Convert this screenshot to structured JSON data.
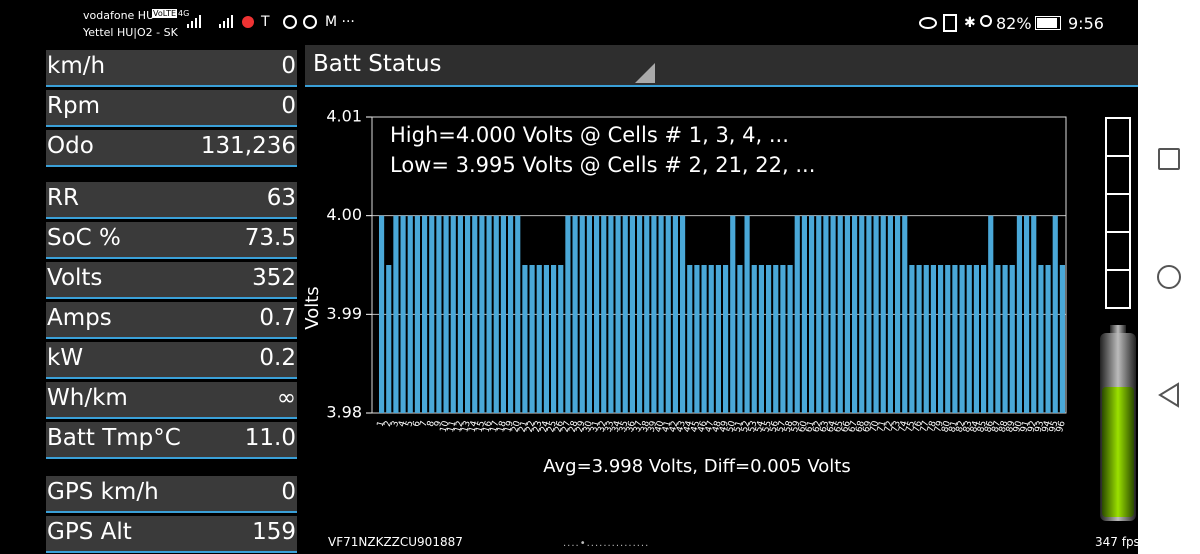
{
  "status_bar": {
    "carrier1": "vodafone HU",
    "volte": "VoLTE",
    "carrier2": "Yettel HU|O2 - SK",
    "network": "4G",
    "battery": "82%",
    "time": "9:56"
  },
  "left_panel": [
    {
      "label": "km/h",
      "value": "0"
    },
    {
      "label": "Rpm",
      "value": "0"
    },
    {
      "label": "Odo",
      "value": "131,236"
    },
    {
      "label": "RR",
      "value": "63"
    },
    {
      "label": "SoC %",
      "value": "73.5"
    },
    {
      "label": "Volts",
      "value": "352"
    },
    {
      "label": "Amps",
      "value": "0.7"
    },
    {
      "label": "kW",
      "value": "0.2"
    },
    {
      "label": "Wh/km",
      "value": "∞"
    },
    {
      "label": "Batt Tmp°C",
      "value": "11.0"
    },
    {
      "label": "GPS km/h",
      "value": "0"
    },
    {
      "label": "GPS Alt",
      "value": "159"
    }
  ],
  "header": {
    "title": "Batt Status"
  },
  "footer": {
    "vin": "VF71NZKZZCU901887",
    "fps": "347 fps"
  },
  "chart_data": {
    "type": "bar",
    "color": "#4aa8d8",
    "annotations": [
      "High=4.000 Volts @ Cells # 1, 3, 4,  ...",
      "Low= 3.995 Volts @ Cells # 2, 21, 22,  ..."
    ],
    "x_label": "Avg=3.998 Volts, Diff=0.005 Volts",
    "y_label": "Volts",
    "ylim": [
      3.98,
      4.01
    ],
    "yticks": [
      3.98,
      3.99,
      {
        "value": 4,
        "label": "4.00"
      },
      4.01
    ],
    "grid": true,
    "categories": [
      "1",
      "2",
      "3",
      "4",
      "5",
      "6",
      "7",
      "8",
      "9",
      "10",
      "11",
      "12",
      "13",
      "14",
      "15",
      "16",
      "17",
      "18",
      "19",
      "20",
      "21",
      "22",
      "23",
      "24",
      "25",
      "26",
      "27",
      "28",
      "29",
      "30",
      "31",
      "32",
      "33",
      "34",
      "35",
      "36",
      "37",
      "38",
      "39",
      "40",
      "41",
      "42",
      "43",
      "44",
      "45",
      "46",
      "47",
      "48",
      "49",
      "50",
      "51",
      "52",
      "53",
      "54",
      "55",
      "56",
      "57",
      "58",
      "59",
      "60",
      "61",
      "62",
      "63",
      "64",
      "65",
      "66",
      "67",
      "68",
      "69",
      "70",
      "71",
      "72",
      "73",
      "74",
      "75",
      "76",
      "77",
      "78",
      "79",
      "80",
      "81",
      "82",
      "83",
      "84",
      "85",
      "86",
      "87",
      "88",
      "89",
      "90",
      "91",
      "92",
      "93",
      "94",
      "95",
      "96"
    ],
    "values": [
      4,
      3.995,
      4,
      4,
      4,
      4,
      4,
      4,
      4,
      4,
      4,
      4,
      4,
      4,
      4,
      4,
      4,
      4,
      4,
      4,
      3.995,
      3.995,
      3.995,
      3.995,
      3.995,
      3.995,
      4,
      4,
      4,
      4,
      4,
      4,
      4,
      4,
      4,
      4,
      4,
      4,
      4,
      4,
      4,
      4,
      4,
      3.995,
      3.995,
      3.995,
      3.995,
      3.995,
      3.995,
      4,
      3.995,
      4,
      3.995,
      3.995,
      3.995,
      3.995,
      3.995,
      3.995,
      4,
      4,
      4,
      4,
      4,
      4,
      4,
      4,
      4,
      4,
      4,
      4,
      4,
      4,
      4,
      4,
      3.995,
      3.995,
      3.995,
      3.995,
      3.995,
      3.995,
      3.995,
      3.995,
      3.995,
      3.995,
      3.995,
      4,
      3.995,
      3.995,
      3.995,
      4,
      4,
      4,
      3.995,
      3.995,
      4,
      3.995
    ]
  }
}
